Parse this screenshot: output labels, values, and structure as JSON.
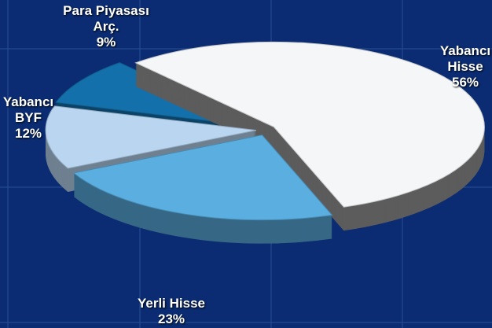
{
  "chart_data": {
    "type": "pie",
    "categories": [
      "Yabancı Hisse",
      "Yerli Hisse",
      "Yabancı BYF",
      "Para Piyasası Arç."
    ],
    "values": [
      56,
      23,
      12,
      9
    ],
    "value_labels": [
      "56%",
      "23%",
      "12%",
      "9%"
    ],
    "colors": [
      "#f4f6f8",
      "#5aaee0",
      "#b9d5f0",
      "#1470aa"
    ]
  }
}
